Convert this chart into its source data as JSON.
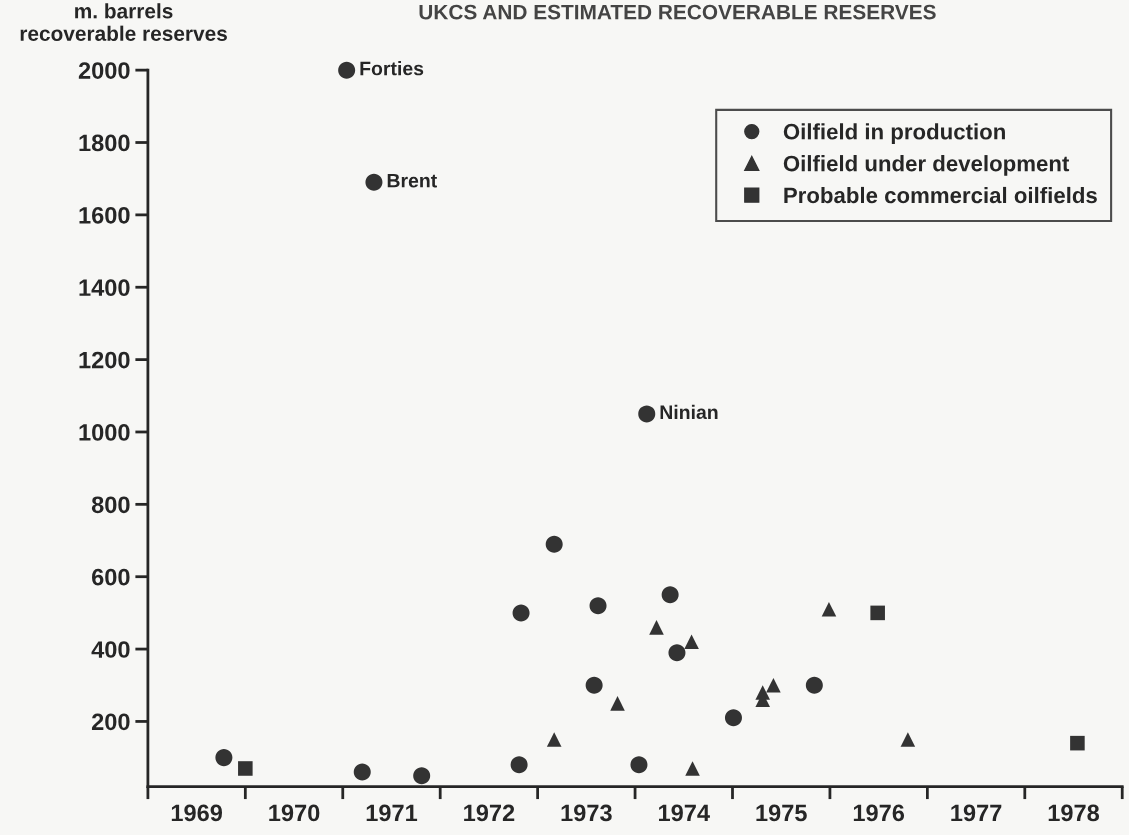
{
  "chart_data": {
    "type": "scatter",
    "title": "UKCS AND ESTIMATED RECOVERABLE RESERVES",
    "ylabel": "m. barrels\nrecoverable reserves",
    "xlim": [
      1969,
      1979
    ],
    "ylim": [
      20,
      2000
    ],
    "xticks": [
      {
        "value": 1969,
        "label": null
      },
      {
        "value": 1969.5,
        "label": "1969"
      },
      {
        "value": 1970,
        "label": null
      },
      {
        "value": 1970.5,
        "label": "1970"
      },
      {
        "value": 1971,
        "label": null
      },
      {
        "value": 1971.5,
        "label": "1971"
      },
      {
        "value": 1972,
        "label": null
      },
      {
        "value": 1972.5,
        "label": "1972"
      },
      {
        "value": 1973,
        "label": null
      },
      {
        "value": 1973.5,
        "label": "1973"
      },
      {
        "value": 1974,
        "label": null
      },
      {
        "value": 1974.5,
        "label": "1974"
      },
      {
        "value": 1975,
        "label": null
      },
      {
        "value": 1975.5,
        "label": "1975"
      },
      {
        "value": 1976,
        "label": null
      },
      {
        "value": 1976.5,
        "label": "1976"
      },
      {
        "value": 1977,
        "label": null
      },
      {
        "value": 1977.5,
        "label": "1977"
      },
      {
        "value": 1978,
        "label": null
      },
      {
        "value": 1978.5,
        "label": "1978"
      },
      {
        "value": 1979,
        "label": null
      }
    ],
    "yticks": [
      200,
      400,
      600,
      800,
      1000,
      1200,
      1400,
      1600,
      1800,
      2000
    ],
    "grid": false,
    "legend": "top right",
    "series": [
      {
        "name": "Oilfield in production",
        "color": "#333333",
        "marker": "circle",
        "x": [
          1969.78,
          1971.2,
          1971.81,
          1972.83,
          1972.81,
          1973.62,
          1973.58,
          1973.17,
          1974.12,
          1974.04,
          1974.36,
          1974.43,
          1975.01,
          1975.84,
          1971.04,
          1971.32
        ],
        "values": [
          100,
          60,
          50,
          500,
          80,
          520,
          300,
          690,
          1050,
          80,
          550,
          390,
          210,
          300,
          2000,
          1690
        ]
      },
      {
        "name": "Oilfield under development",
        "color": "#333333",
        "marker": "triangle",
        "x": [
          1973.17,
          1973.82,
          1974.22,
          1974.58,
          1974.59,
          1975.31,
          1975.31,
          1975.42,
          1975.99,
          1976.8
        ],
        "values": [
          150,
          250,
          460,
          420,
          70,
          280,
          260,
          300,
          510,
          150
        ]
      },
      {
        "name": "Probable commercial oilfields",
        "color": "#333333",
        "marker": "square",
        "x": [
          1970.0,
          1976.49,
          1978.54
        ],
        "values": [
          70,
          500,
          140
        ]
      }
    ],
    "annotations": [
      {
        "text": "Forties",
        "x": 1971.04,
        "y": 2000
      },
      {
        "text": "Brent",
        "x": 1971.32,
        "y": 1690
      },
      {
        "text": "Ninian",
        "x": 1974.12,
        "y": 1050
      }
    ]
  }
}
